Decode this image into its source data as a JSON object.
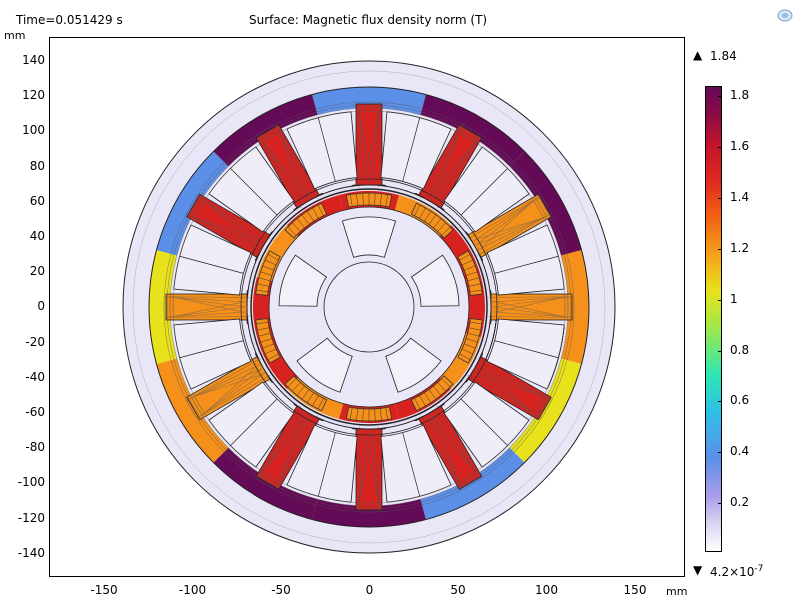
{
  "header": {
    "time_label": "Time=0.051429 s",
    "plot_title": "Surface: Magnetic flux density norm (T)",
    "y_unit": "mm",
    "x_unit": "mm"
  },
  "axes": {
    "y_ticks": [
      "140",
      "120",
      "100",
      "80",
      "60",
      "40",
      "20",
      "0",
      "-20",
      "-40",
      "-60",
      "-80",
      "-100",
      "-120",
      "-140"
    ],
    "x_ticks": [
      "-150",
      "-100",
      "-50",
      "0",
      "50",
      "100",
      "150"
    ]
  },
  "colorbar": {
    "max_label": "1.84",
    "min_label_base": "4.2×10",
    "min_label_exp": "-7",
    "ticks": [
      "1.8",
      "1.6",
      "1.4",
      "1.2",
      "1",
      "0.8",
      "0.6",
      "0.4",
      "0.2"
    ],
    "max_arrow": "▲",
    "min_arrow": "▼"
  },
  "colors": {
    "high": "#650a57",
    "red": "#d8221f",
    "orange": "#f5901a",
    "yellow": "#e8e21c",
    "cyan": "#2fc0e8",
    "blue": "#5b8fe8",
    "low": "#e6e4f6"
  },
  "icons": {
    "logo": "comsol-logo-icon"
  }
}
